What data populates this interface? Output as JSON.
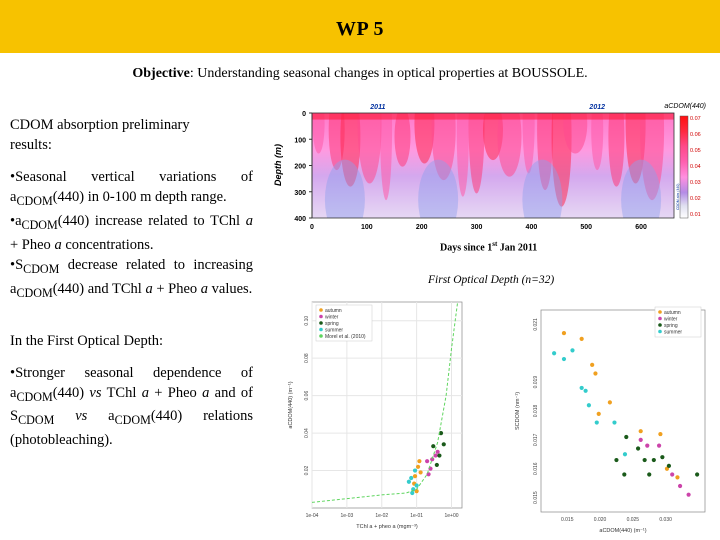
{
  "header": {
    "title": "WP 5"
  },
  "objective": {
    "label": "Objective",
    "text": ": Understanding seasonal changes in optical properties at BOUSSOLE."
  },
  "left": {
    "heading_line1": "CDOM absorption preliminary",
    "heading_line2": "results",
    "heading_colon": ":",
    "b1": {
      "bullet": "•",
      "pre": "Seasonal vertical variations of a",
      "sub": "CDOM",
      "post": "(440) in 0-100 m depth range."
    },
    "b2": {
      "bullet": "•",
      "pre": "a",
      "sub": "CDOM",
      "post_a": "(440) increase related to TChl ",
      "italic1": "a",
      "mid": " + Pheo ",
      "italic2": "a",
      "post_b": " concentrations."
    },
    "b3": {
      "bullet": "•",
      "pre": "S",
      "sub": "CDOM",
      "mid1": " decrease related to increasing a",
      "sub2": "CDOM",
      "mid2": "(440) and TChl ",
      "italic1": "a",
      "mid3": " + Pheo ",
      "italic2": "a",
      "post": " values."
    },
    "first_od_heading": "In the First Optical Depth:",
    "b4": {
      "bullet": "•",
      "pre": "Stronger seasonal dependence of a",
      "sub": "CDOM",
      "mid1": "(440) ",
      "vs1": "vs",
      "mid2": " TChl ",
      "italic1": "a",
      "mid3": " + Pheo ",
      "italic2": "a",
      "mid4": " and of S",
      "sub2": "CDOM",
      "vs2": "vs",
      "mid5": " a",
      "sub3": "CDOM",
      "post": "(440) relations (photobleaching)."
    }
  },
  "heatmap": {
    "year_labels": [
      "2011",
      "2012"
    ],
    "title": "aCDOM(440)",
    "ylabel": "Depth (m)",
    "yticks": [
      "0",
      "100",
      "200",
      "300",
      "400"
    ],
    "xticks": [
      "0",
      "100",
      "200",
      "300",
      "400",
      "500",
      "600"
    ],
    "xlabel_pre": "Days since 1",
    "xlabel_sup": "st",
    "xlabel_post": " Jan 2011",
    "colorbar_ticks": [
      "0.07",
      "0.06",
      "0.05",
      "0.04",
      "0.03",
      "0.02",
      "0.01"
    ],
    "colorbar_label": "CDOM abs (440)"
  },
  "fod_caption": "First Optical Depth (n=32)",
  "scatter_left": {
    "legend": [
      "autumn",
      "winter",
      "spring",
      "summer",
      "Morel et al. (2010)"
    ],
    "ylabel": "aCDOM(440) (m⁻¹)",
    "yticks": [
      "0.10",
      "0.08",
      "0.06",
      "0.04",
      "0.02"
    ],
    "xticks": [
      "1e-04",
      "1e-03",
      "1e-02",
      "1e-01",
      "1e+00"
    ],
    "xlabel": "TChl a + pheo a (mgm⁻³)"
  },
  "scatter_right": {
    "legend": [
      "autumn",
      "winter",
      "spring",
      "summer"
    ],
    "ylabel": "SCDOM (nm⁻¹)",
    "yticks": [
      "0.021",
      "0.019",
      "0.018",
      "0.017",
      "0.016",
      "0.015"
    ],
    "xticks": [
      "0.015",
      "0.020",
      "0.025",
      "0.030"
    ],
    "xlabel": "aCDOM(440) (m⁻¹)"
  },
  "colors": {
    "header": "#f7c200",
    "autumn": "#f0a020",
    "winter": "#cc44aa",
    "spring": "#1a5a1a",
    "summer": "#33cccc",
    "model": "#5fd55f"
  },
  "chart_data": [
    {
      "type": "heatmap",
      "title": "aCDOM(440)",
      "xlabel": "Days since 1st Jan 2011",
      "ylabel": "Depth (m)",
      "xlim": [
        0,
        660
      ],
      "ylim": [
        400,
        0
      ],
      "colorbar_range": [
        0.01,
        0.07
      ]
    },
    {
      "type": "scatter",
      "xscale": "log",
      "xlabel": "TChl a + pheo a (mgm-3)",
      "ylabel": "aCDOM(440) (m-1)",
      "xlim": [
        0.0001,
        2
      ],
      "ylim": [
        0,
        0.11
      ],
      "series": [
        {
          "name": "autumn",
          "x": [
            0.09,
            0.11,
            0.13,
            0.085,
            0.1,
            0.12
          ],
          "y": [
            0.017,
            0.022,
            0.019,
            0.013,
            0.009,
            0.025
          ]
        },
        {
          "name": "winter",
          "x": [
            0.2,
            0.28,
            0.35,
            0.25,
            0.4,
            0.22
          ],
          "y": [
            0.025,
            0.026,
            0.028,
            0.021,
            0.03,
            0.018
          ]
        },
        {
          "name": "spring",
          "x": [
            0.3,
            0.5,
            0.45,
            0.6,
            0.38
          ],
          "y": [
            0.033,
            0.04,
            0.028,
            0.034,
            0.023
          ]
        },
        {
          "name": "summer",
          "x": [
            0.07,
            0.08,
            0.1,
            0.09,
            0.075,
            0.06
          ],
          "y": [
            0.016,
            0.01,
            0.012,
            0.02,
            0.008,
            0.014
          ]
        },
        {
          "name": "Morel et al. (2010)",
          "line": true,
          "x": [
            0.0001,
            0.001,
            0.01,
            0.05,
            0.1,
            0.2,
            0.4,
            0.7,
            1.0,
            1.5
          ],
          "y": [
            0.003,
            0.005,
            0.007,
            0.008,
            0.01,
            0.018,
            0.035,
            0.06,
            0.085,
            0.11
          ]
        }
      ]
    },
    {
      "type": "scatter",
      "xlabel": "aCDOM(440) (m-1)",
      "ylabel": "SCDOM (nm-1)",
      "xlim": [
        0.011,
        0.036
      ],
      "ylim": [
        0.0145,
        0.0215
      ],
      "series": [
        {
          "name": "autumn",
          "x": [
            0.0145,
            0.0172,
            0.0188,
            0.0193,
            0.0198,
            0.0215,
            0.0262,
            0.0292,
            0.0318,
            0.0302
          ],
          "y": [
            0.0207,
            0.0205,
            0.0196,
            0.0193,
            0.0179,
            0.0183,
            0.0173,
            0.0172,
            0.0157,
            0.016
          ]
        },
        {
          "name": "winter",
          "x": [
            0.0262,
            0.0272,
            0.029,
            0.031,
            0.0322,
            0.0335
          ],
          "y": [
            0.017,
            0.0168,
            0.0168,
            0.0158,
            0.0154,
            0.0151
          ]
        },
        {
          "name": "spring",
          "x": [
            0.0225,
            0.0237,
            0.0258,
            0.0268,
            0.0275,
            0.0282,
            0.0295,
            0.0305,
            0.0348,
            0.024
          ],
          "y": [
            0.0163,
            0.0158,
            0.0167,
            0.0163,
            0.0158,
            0.0163,
            0.0164,
            0.0161,
            0.0158,
            0.0171
          ]
        },
        {
          "name": "summer",
          "x": [
            0.013,
            0.0145,
            0.0158,
            0.0172,
            0.0178,
            0.0183,
            0.0195,
            0.0222,
            0.0238
          ],
          "y": [
            0.02,
            0.0198,
            0.0201,
            0.0188,
            0.0187,
            0.0182,
            0.0176,
            0.0176,
            0.0165
          ]
        }
      ]
    }
  ]
}
